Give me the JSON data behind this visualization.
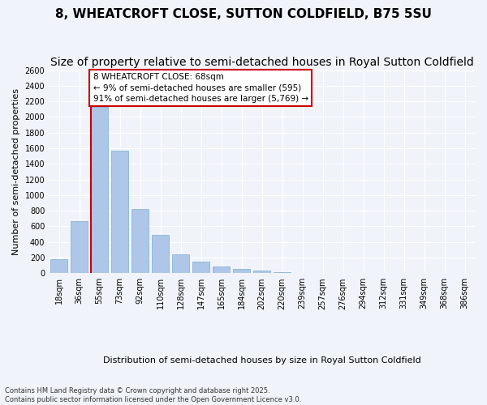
{
  "title": "8, WHEATCROFT CLOSE, SUTTON COLDFIELD, B75 5SU",
  "subtitle": "Size of property relative to semi-detached houses in Royal Sutton Coldfield",
  "xlabel_bottom": "Distribution of semi-detached houses by size in Royal Sutton Coldfield",
  "ylabel": "Number of semi-detached properties",
  "footnote": "Contains HM Land Registry data © Crown copyright and database right 2025.\nContains public sector information licensed under the Open Government Licence v3.0.",
  "bin_labels": [
    "18sqm",
    "36sqm",
    "55sqm",
    "73sqm",
    "92sqm",
    "110sqm",
    "128sqm",
    "147sqm",
    "165sqm",
    "184sqm",
    "202sqm",
    "220sqm",
    "239sqm",
    "257sqm",
    "276sqm",
    "294sqm",
    "312sqm",
    "331sqm",
    "349sqm",
    "368sqm",
    "386sqm"
  ],
  "bar_values": [
    175,
    670,
    2130,
    1570,
    820,
    490,
    240,
    150,
    90,
    55,
    30,
    10,
    5,
    2,
    0,
    0,
    0,
    0,
    0,
    2,
    0
  ],
  "bar_color": "#aec6e8",
  "bar_edge_color": "#7aaed0",
  "property_size": 68,
  "property_bin_index": 2,
  "annotation_text": "8 WHEATCROFT CLOSE: 68sqm\n← 9% of semi-detached houses are smaller (595)\n91% of semi-detached houses are larger (5,769) →",
  "annotation_box_color": "#ffffff",
  "annotation_box_edge_color": "#cc0000",
  "vline_color": "#cc0000",
  "ylim": [
    0,
    2600
  ],
  "yticks": [
    0,
    200,
    400,
    600,
    800,
    1000,
    1200,
    1400,
    1600,
    1800,
    2000,
    2200,
    2400,
    2600
  ],
  "background_color": "#f0f4fa",
  "grid_color": "#ffffff",
  "title_fontsize": 11,
  "subtitle_fontsize": 10,
  "ylabel_fontsize": 8,
  "tick_fontsize": 7
}
